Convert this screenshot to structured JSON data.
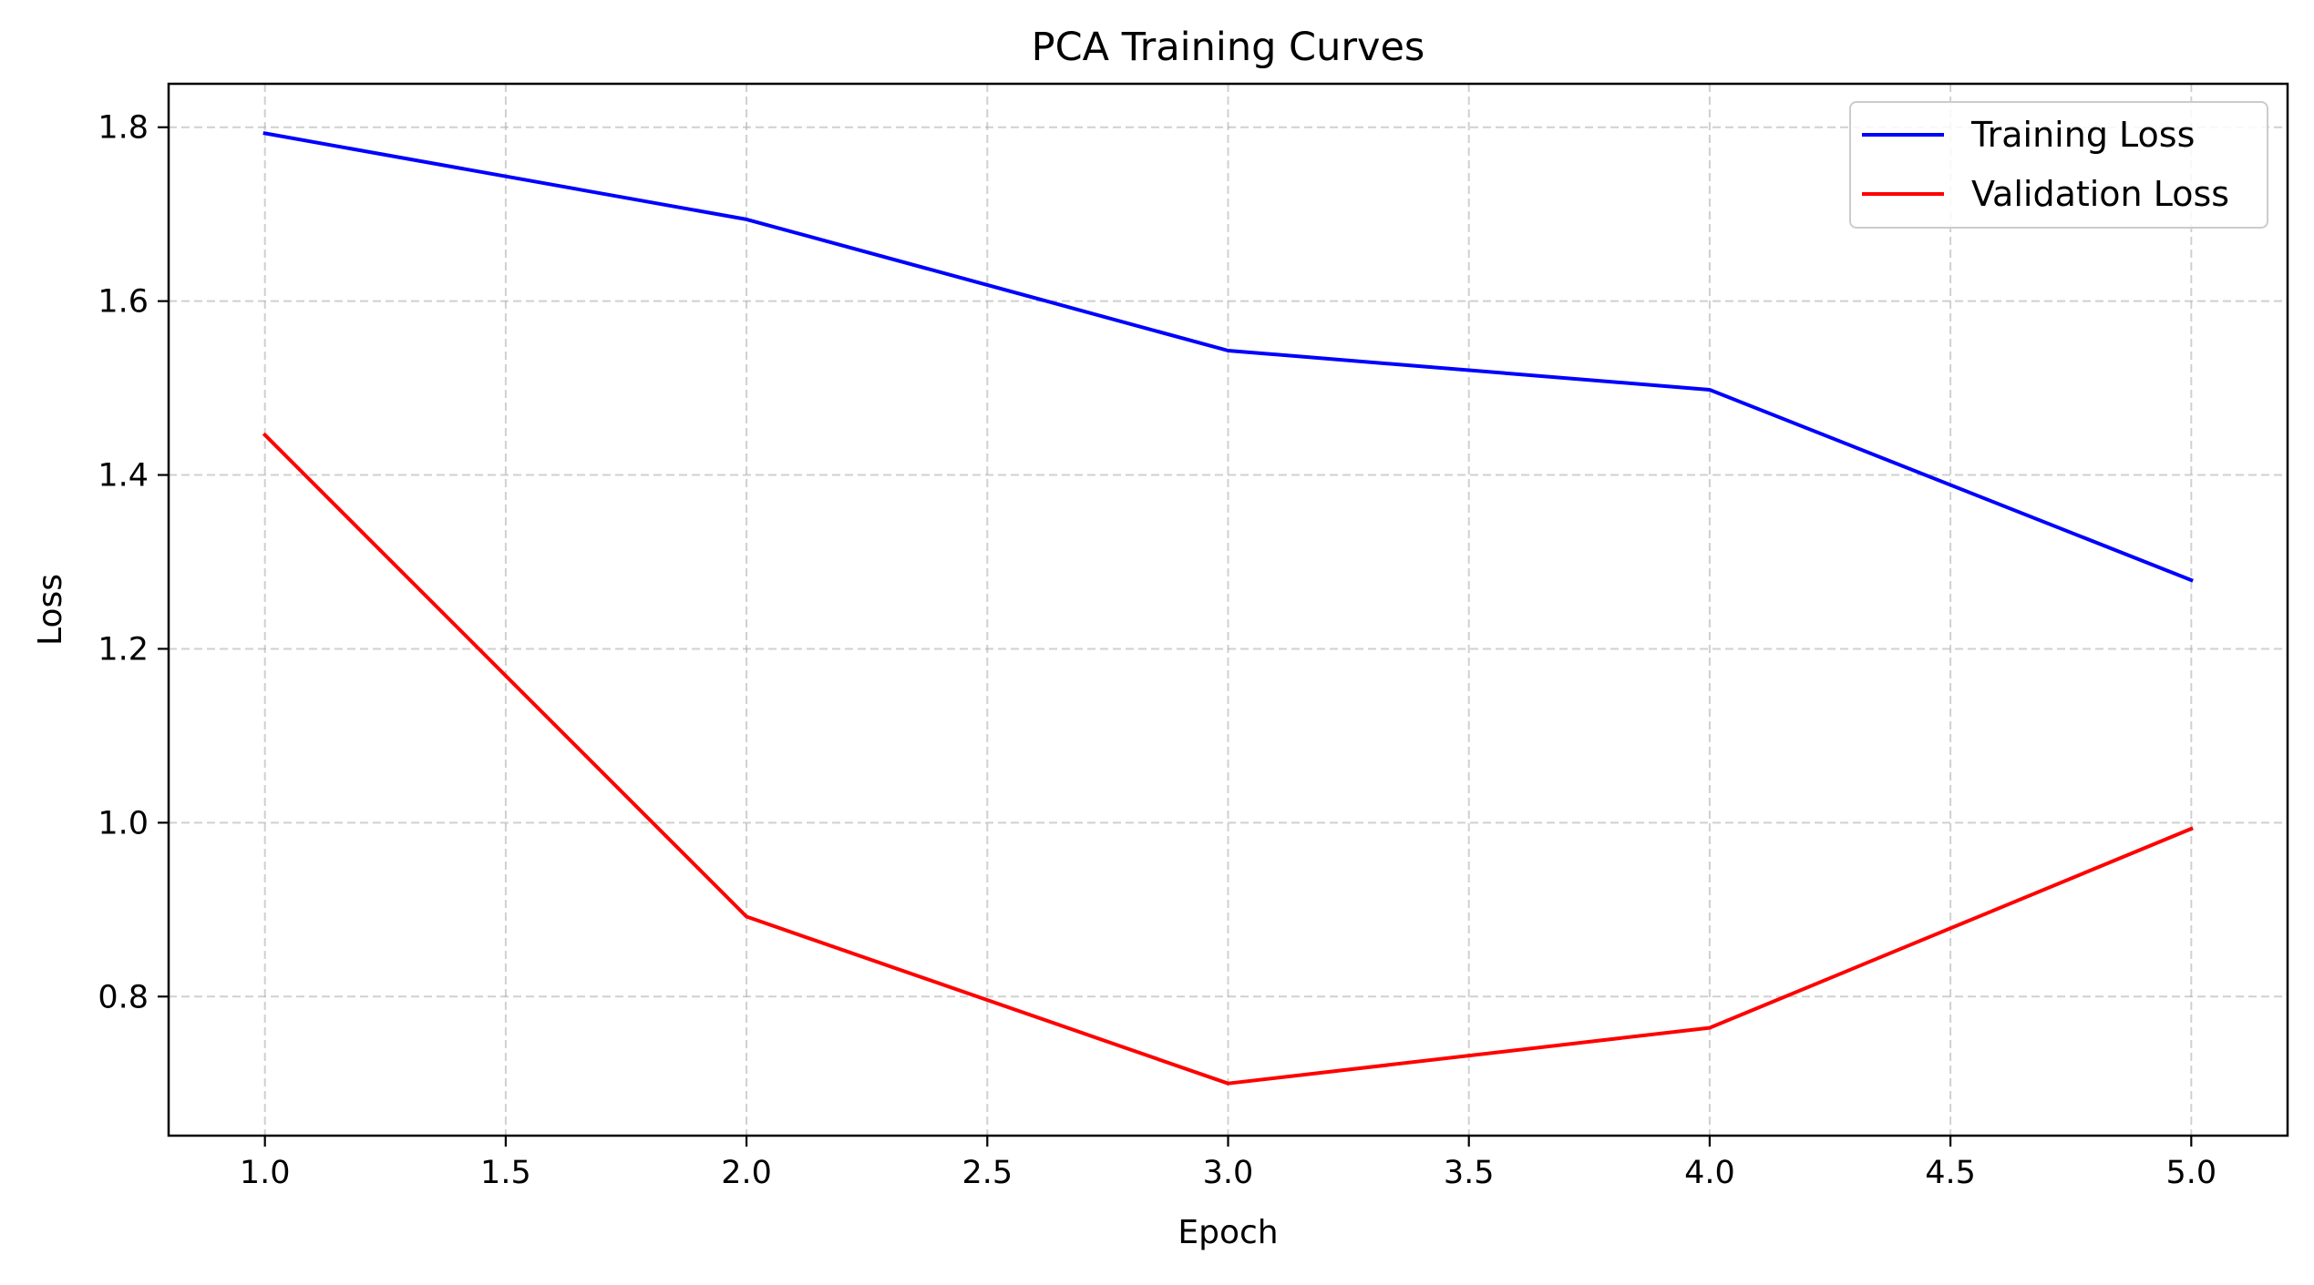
{
  "chart_data": {
    "type": "line",
    "title": "PCA Training Curves",
    "xlabel": "Epoch",
    "ylabel": "Loss",
    "x": [
      1,
      2,
      3,
      4,
      5
    ],
    "xlim": [
      0.8,
      5.2
    ],
    "ylim": [
      0.64,
      1.85
    ],
    "xticks": [
      1.0,
      1.5,
      2.0,
      2.5,
      3.0,
      3.5,
      4.0,
      4.5,
      5.0
    ],
    "xtick_labels": [
      "1.0",
      "1.5",
      "2.0",
      "2.5",
      "3.0",
      "3.5",
      "4.0",
      "4.5",
      "5.0"
    ],
    "yticks": [
      0.8,
      1.0,
      1.2,
      1.4,
      1.6,
      1.8
    ],
    "ytick_labels": [
      "0.8",
      "1.0",
      "1.2",
      "1.4",
      "1.6",
      "1.8"
    ],
    "grid": true,
    "legend_position": "top-right",
    "series": [
      {
        "name": "Training Loss",
        "color": "#0000ff",
        "values": [
          1.793,
          1.694,
          1.543,
          1.498,
          1.279
        ]
      },
      {
        "name": "Validation Loss",
        "color": "#ff0000",
        "values": [
          1.446,
          0.892,
          0.7,
          0.764,
          0.993
        ]
      }
    ]
  }
}
